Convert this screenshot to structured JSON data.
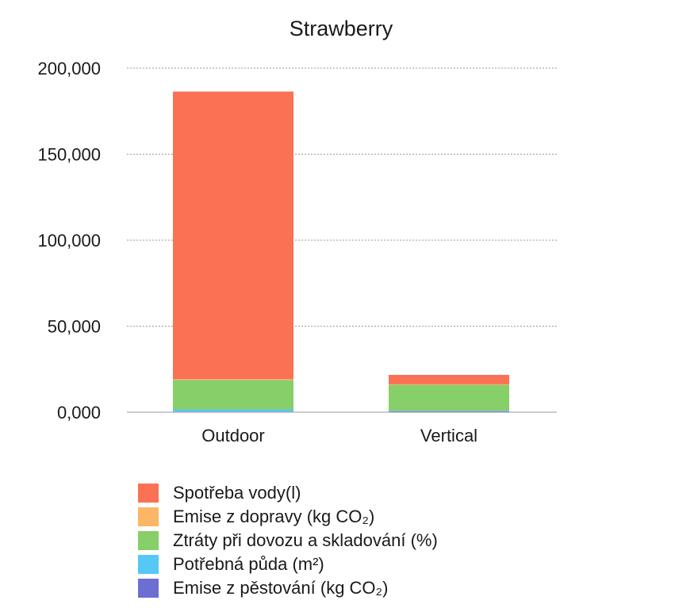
{
  "chart_data": {
    "type": "bar",
    "stacked": true,
    "title": "Strawberry",
    "xlabel": "",
    "ylabel": "",
    "categories": [
      "Outdoor",
      "Vertical"
    ],
    "ylim": [
      0,
      200000
    ],
    "yticks": [
      0,
      50000,
      100000,
      150000,
      200000
    ],
    "ytick_labels": [
      "0,000",
      "50,000",
      "100,000",
      "150,000",
      "200,000"
    ],
    "grid": true,
    "legend_position": "bottom",
    "series": [
      {
        "name": "Emise z pěstování (kg CO₂)",
        "values": [
          300,
          600
        ],
        "color": "#6c6fd1"
      },
      {
        "name": "Potřebná půda (m²)",
        "values": [
          1300,
          250
        ],
        "color": "#55c8f5"
      },
      {
        "name": "Ztráty při dovozu a skladování (%)",
        "values": [
          17100,
          15100
        ],
        "color": "#86cf69"
      },
      {
        "name": "Emise z dopravy (kg CO₂)",
        "values": [
          500,
          250
        ],
        "color": "#fbb765"
      },
      {
        "name": "Spotřeba vody(l)",
        "values": [
          167200,
          5500
        ],
        "color": "#fb7153"
      }
    ]
  }
}
